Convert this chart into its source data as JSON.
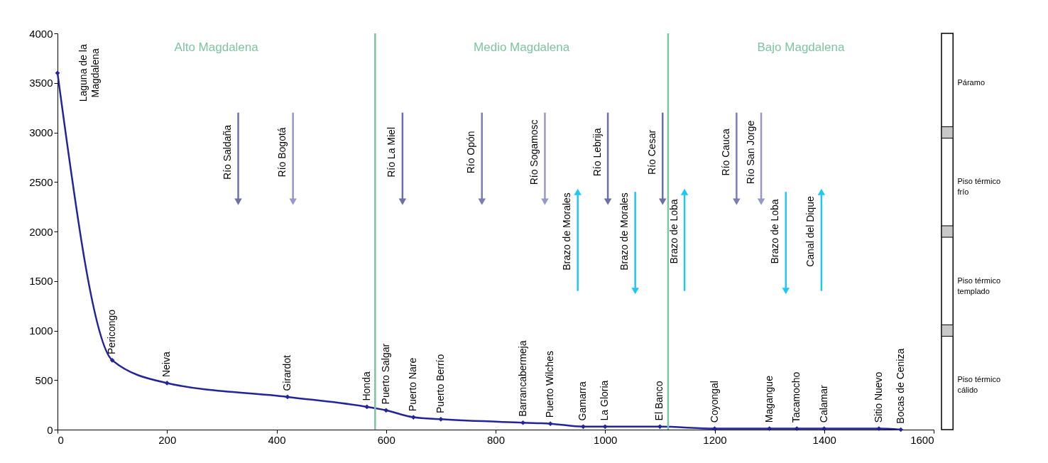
{
  "chart_data": [
    {
      "type": "line",
      "xlim": [
        0,
        1600
      ],
      "ylim": [
        0,
        4000
      ],
      "xticks": [
        0,
        200,
        400,
        600,
        800,
        1000,
        1200,
        1400,
        1600
      ],
      "yticks": [
        0,
        500,
        1000,
        1500,
        2000,
        2500,
        3000,
        3500,
        4000
      ],
      "series": [
        {
          "color": "#23239b",
          "marker": "diamond",
          "x": [
            0,
            100,
            200,
            420,
            565,
            600,
            650,
            700,
            850,
            900,
            960,
            1000,
            1100,
            1200,
            1300,
            1350,
            1400,
            1500,
            1540
          ],
          "values": [
            3600,
            700,
            470,
            330,
            230,
            195,
            125,
            105,
            70,
            60,
            30,
            30,
            30,
            10,
            10,
            10,
            10,
            10,
            0
          ]
        },
        {
          "name": "Río Saldaña",
          "color": "#6d6fa9",
          "marker": "triangle",
          "x": [
            330,
            330
          ],
          "values": [
            3200,
            2300
          ]
        },
        {
          "name": "Río Bogotá",
          "color": "#9898c6",
          "marker": "triangle",
          "x": [
            430,
            430
          ],
          "values": [
            3200,
            2300
          ]
        },
        {
          "name": "Río La Miel",
          "color": "#6d6fa9",
          "marker": "triangle",
          "x": [
            630,
            630
          ],
          "values": [
            3200,
            2300
          ]
        },
        {
          "name": "Río Opón",
          "color": "#7b7db3",
          "marker": "triangle",
          "x": [
            775,
            775
          ],
          "values": [
            3200,
            2300
          ]
        },
        {
          "name": "Río Sogamosc",
          "color": "#9898c6",
          "marker": "triangle",
          "x": [
            890,
            890
          ],
          "values": [
            3200,
            2300
          ]
        },
        {
          "name": "Río Lebrija",
          "color": "#6d6fa9",
          "marker": "triangle",
          "x": [
            1005,
            1005
          ],
          "values": [
            3200,
            2300
          ]
        },
        {
          "name": "Río Cesar",
          "color": "#6d6fa9",
          "marker": "triangle",
          "x": [
            1105,
            1105
          ],
          "values": [
            3200,
            2300
          ]
        },
        {
          "name": "Río Cauca",
          "color": "#7b7db3",
          "marker": "triangle",
          "x": [
            1240,
            1240
          ],
          "values": [
            3200,
            2300
          ]
        },
        {
          "name": "Río San Jorge",
          "color": "#9898c6",
          "marker": "triangle",
          "x": [
            1285,
            1285
          ],
          "values": [
            3200,
            2300
          ]
        },
        {
          "name": "Brazo de Morales",
          "color": "#1ec8f5",
          "marker": "triangle",
          "x": [
            950,
            950
          ],
          "values": [
            1400,
            2400
          ]
        },
        {
          "name": "Brazo de Morales",
          "color": "#1ec8f5",
          "marker": "triangle",
          "x": [
            1055,
            1055
          ],
          "values": [
            2400,
            1400
          ]
        },
        {
          "name": "Brazo de Loba",
          "color": "#1ec8f5",
          "marker": "triangle",
          "x": [
            1145,
            1145
          ],
          "values": [
            1400,
            2400
          ]
        },
        {
          "name": "Brazo de Loba",
          "color": "#1ec8f5",
          "marker": "triangle",
          "x": [
            1330,
            1330
          ],
          "values": [
            2400,
            1400
          ]
        },
        {
          "name": "Canal del Dique",
          "color": "#1ec8f5",
          "marker": "triangle",
          "x": [
            1395,
            1395
          ],
          "values": [
            1400,
            2400
          ]
        }
      ],
      "annotations": [
        "Alto Magdalena",
        "Medio Magdalena",
        "Bajo Magdalena",
        {
          "text": "Laguna de la Magdalena",
          "x": 0,
          "y": 3600
        },
        {
          "text": "Pericongo",
          "x": 100,
          "y": 700
        },
        {
          "text": "Neiva",
          "x": 200,
          "y": 470
        },
        {
          "text": "Girardot",
          "x": 420,
          "y": 330
        },
        {
          "text": "Honda",
          "x": 565,
          "y": 230
        },
        {
          "text": "Puerto Salgar",
          "x": 600,
          "y": 195
        },
        {
          "text": "Puerto Nare",
          "x": 650,
          "y": 125
        },
        {
          "text": "Puerto Berrío",
          "x": 700,
          "y": 105
        },
        {
          "text": "Barrancabermeja",
          "x": 850,
          "y": 70
        },
        {
          "text": "Puerto Wilches",
          "x": 900,
          "y": 60
        },
        {
          "text": "Gamarra",
          "x": 960,
          "y": 30
        },
        {
          "text": "La Gloria",
          "x": 1000,
          "y": 30
        },
        {
          "text": "El Banco",
          "x": 1100,
          "y": 30
        },
        {
          "text": "Coyongal",
          "x": 1200,
          "y": 10
        },
        {
          "text": "Magangue",
          "x": 1300,
          "y": 10
        },
        {
          "text": "Tacamocho",
          "x": 1350,
          "y": 10
        },
        {
          "text": "Calamar",
          "x": 1400,
          "y": 10
        },
        {
          "text": "Sitio Nuevo",
          "x": 1500,
          "y": 10
        },
        {
          "text": "Bocas de Ceniza",
          "x": 1540,
          "y": 0
        }
      ],
      "ref_lines": [
        {
          "axis": "x",
          "value": 580,
          "color": "#7fc4a0"
        },
        {
          "axis": "x",
          "value": 1115,
          "color": "#7fc4a0"
        }
      ]
    },
    {
      "type": "other",
      "annotations": [
        "Páramo",
        "Piso térmico frío",
        "Piso térmico templado",
        "Piso térmico cálido"
      ]
    }
  ]
}
